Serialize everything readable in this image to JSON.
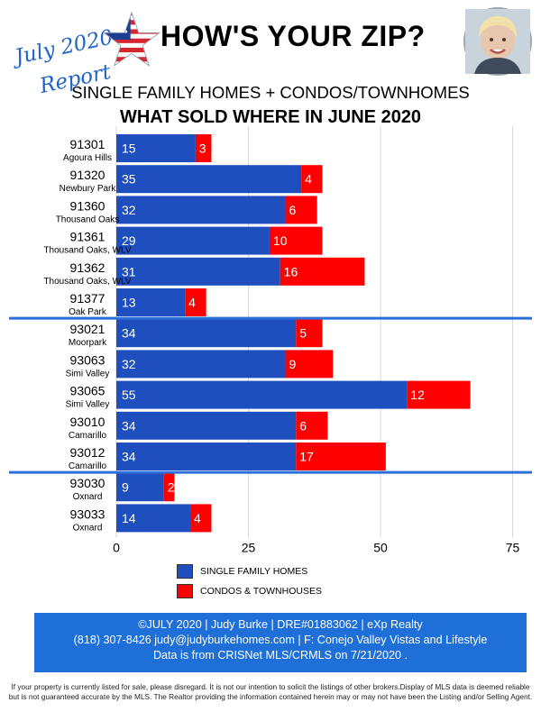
{
  "header": {
    "badge_line1": "July 2020",
    "badge_line2": "Report",
    "title": "HOW'S YOUR ZIP?",
    "subtitle": "SINGLE FAMILY HOMES + CONDOS/TOWNHOMES",
    "chart_title": "WHAT SOLD WHERE IN JUNE 2020"
  },
  "chart_data": {
    "type": "bar",
    "orientation": "horizontal",
    "stacked": true,
    "categories": [
      "91301",
      "91320",
      "91360",
      "91361",
      "91362",
      "91377",
      "93021",
      "93063",
      "93065",
      "93010",
      "93012",
      "93030",
      "93033"
    ],
    "category_sublabels": [
      "Agoura Hills",
      "Newbury Park",
      "Thousand Oaks",
      "Thousand Oaks, WLV",
      "Thousand Oaks, WLV",
      "Oak Park",
      "Moorpark",
      "Simi Valley",
      "Simi Valley",
      "Camarillo",
      "Camarillo",
      "Oxnard",
      "Oxnard"
    ],
    "series": [
      {
        "name": "SINGLE FAMILY HOMES",
        "color": "#1f4fbf",
        "values": [
          15,
          35,
          32,
          29,
          31,
          13,
          34,
          32,
          55,
          34,
          34,
          9,
          14
        ]
      },
      {
        "name": "CONDOS & TOWNHOUSES",
        "color": "#ff0000",
        "values": [
          3,
          4,
          6,
          10,
          16,
          4,
          5,
          9,
          12,
          6,
          17,
          2,
          4
        ]
      }
    ],
    "group_breaks_after": [
      "91377",
      "93012"
    ],
    "separator_color": "#2a6fdb",
    "xlim": [
      0,
      75
    ],
    "xticks": [
      "0",
      "25",
      "50",
      "75"
    ],
    "grid": true,
    "legend_position": "bottom"
  },
  "footer": {
    "line1": "©JULY 2020  |  Judy Burke  |  DRE#01883062  |  eXp Realty",
    "line2": "(818) 307-8426  judy@judyburkehomes.com | F: Conejo Valley Vistas and Lifestyle",
    "line3": "Data is from CRISNet MLS/CRMLS on 7/21/2020 .",
    "band_color": "#1f6fd8"
  },
  "disclaimer": {
    "line1": "If your property is currently listed for sale, please disregard. It is not our intention to solicit the listings of other brokers.Display of MLS data is deemed reliable",
    "line2": "but is not guaranteed accurate by the MLS. The Realtor providing the information contained herein may or may not have been the Listing and/or Selling Agent."
  },
  "icons": {
    "star": "american-flag-star-icon",
    "avatar": "agent-photo"
  }
}
